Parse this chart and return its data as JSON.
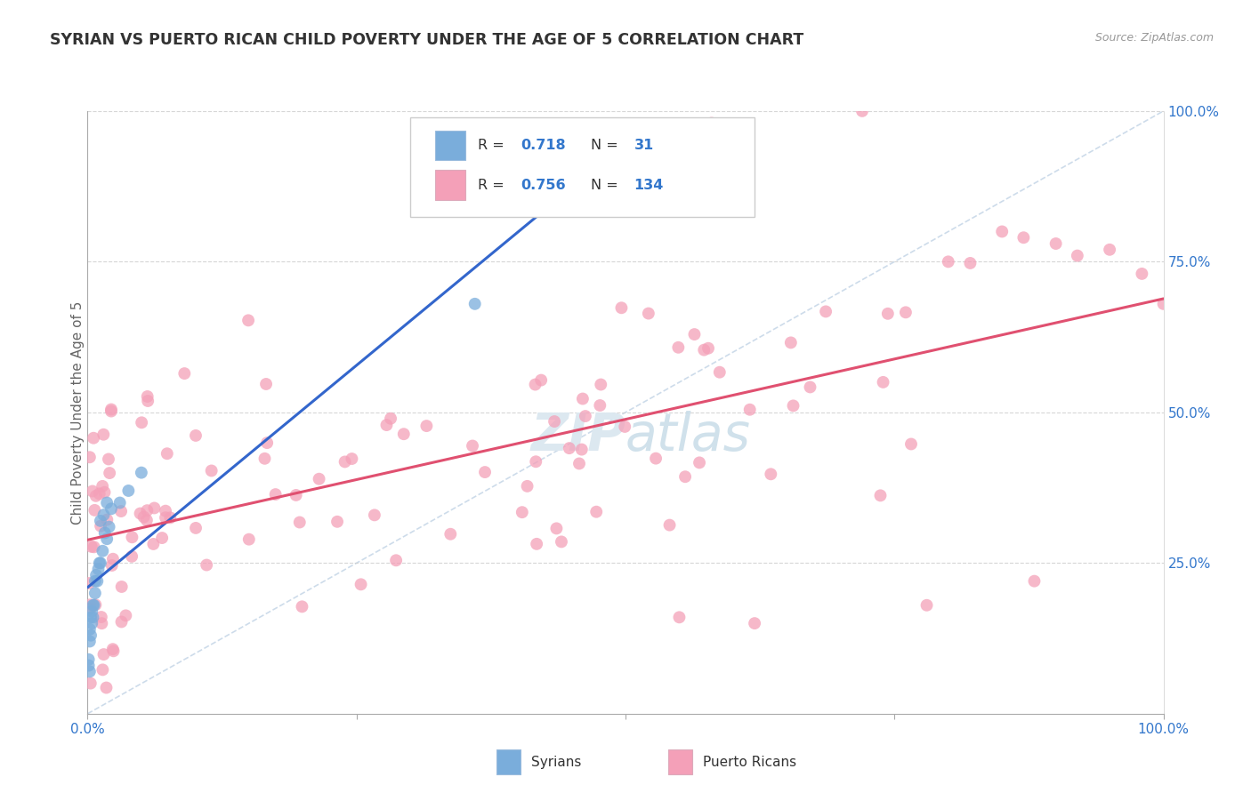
{
  "title": "SYRIAN VS PUERTO RICAN CHILD POVERTY UNDER THE AGE OF 5 CORRELATION CHART",
  "source_text": "Source: ZipAtlas.com",
  "ylabel": "Child Poverty Under the Age of 5",
  "xlabel_syrians": "Syrians",
  "xlabel_puerto_ricans": "Puerto Ricans",
  "xlim": [
    0.0,
    1.0
  ],
  "ylim": [
    0.0,
    1.0
  ],
  "syrian_color": "#7aaddb",
  "puerto_rican_color": "#f4a0b8",
  "syrian_line_color": "#3366cc",
  "puerto_rican_line_color": "#e05070",
  "diag_line_color": "#c8d8e8",
  "background_color": "#ffffff",
  "grid_color": "#cccccc",
  "title_color": "#333333",
  "axis_label_color": "#666666",
  "tick_label_color": "#3377cc",
  "legend_label_color": "#3377cc",
  "source_color": "#999999",
  "watermark_color": "#dce8f0",
  "legend_r_syrian": "0.718",
  "legend_n_syrian": "31",
  "legend_r_pr": "0.756",
  "legend_n_pr": "134",
  "watermark": "ZIPatlas"
}
